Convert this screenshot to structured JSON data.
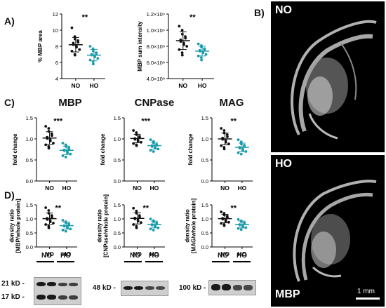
{
  "panel_letters": {
    "A": "A)",
    "B": "B)",
    "C": "C)",
    "D": "D)"
  },
  "section_titles": {
    "mbp": "MBP",
    "cnpase": "CNPase",
    "mag": "MAG"
  },
  "micrographs": {
    "top_label": "NO",
    "bottom_label": "HO",
    "stain_label": "MBP",
    "scale_bar": "1 mm"
  },
  "blots": {
    "group_labels": [
      "NO",
      "HO"
    ],
    "mbp_bands": [
      "21 kD -",
      "17 kD -"
    ],
    "cnpase_band": "48 kD -",
    "mag_band": "100 kD -"
  },
  "colors": {
    "no": "#111111",
    "ho": "#1a9aaa"
  },
  "chart_data": [
    {
      "id": "A1",
      "type": "scatter",
      "ylabel": "% MBP area",
      "yticks": [
        "4",
        "6",
        "8",
        "10",
        "12"
      ],
      "ylim": [
        4,
        12
      ],
      "categories": [
        "NO",
        "HO"
      ],
      "significance": "**",
      "series": [
        {
          "name": "NO",
          "mean": 8.2,
          "sd": 0.9,
          "values": [
            10.3,
            9.2,
            8.9,
            8.7,
            8.5,
            8.4,
            8.2,
            8.0,
            7.9,
            7.6,
            7.4,
            7.0,
            6.9
          ]
        },
        {
          "name": "HO",
          "mean": 6.9,
          "sd": 0.7,
          "values": [
            8.0,
            7.7,
            7.4,
            7.2,
            7.1,
            7.0,
            6.9,
            6.8,
            6.7,
            6.5,
            6.3,
            6.1,
            5.8
          ]
        }
      ]
    },
    {
      "id": "A2",
      "type": "scatter",
      "ylabel": "MBP sum intensity",
      "yticks": [
        "4.0×10⁸",
        "6.0×10⁸",
        "8.0×10⁸",
        "1.0×10⁹",
        "1.2×10⁹"
      ],
      "ylim": [
        400000000.0,
        1200000000.0
      ],
      "categories": [
        "NO",
        "HO"
      ],
      "significance": "**",
      "series": [
        {
          "name": "NO",
          "mean": 870000000.0,
          "sd": 110000000.0,
          "values": [
            1050000000.0,
            1000000000.0,
            950000000.0,
            920000000.0,
            900000000.0,
            880000000.0,
            860000000.0,
            840000000.0,
            820000000.0,
            800000000.0,
            760000000.0,
            720000000.0,
            690000000.0
          ]
        },
        {
          "name": "HO",
          "mean": 740000000.0,
          "sd": 60000000.0,
          "values": [
            830000000.0,
            810000000.0,
            790000000.0,
            770000000.0,
            760000000.0,
            750000000.0,
            740000000.0,
            730000000.0,
            720000000.0,
            700000000.0,
            680000000.0,
            660000000.0,
            630000000.0
          ]
        }
      ]
    },
    {
      "id": "C_MBP",
      "type": "scatter",
      "ylabel": "fold change",
      "yticks": [
        "0.0",
        "0.5",
        "1.0",
        "1.5"
      ],
      "ylim": [
        0,
        1.5
      ],
      "categories": [
        "NO",
        "HO"
      ],
      "significance": "***",
      "series": [
        {
          "name": "NO",
          "mean": 1.02,
          "sd": 0.15,
          "values": [
            1.3,
            1.25,
            1.18,
            1.12,
            1.08,
            1.04,
            1.01,
            0.98,
            0.95,
            0.9,
            0.86,
            0.82,
            0.78
          ]
        },
        {
          "name": "HO",
          "mean": 0.73,
          "sd": 0.1,
          "values": [
            0.9,
            0.86,
            0.82,
            0.79,
            0.76,
            0.74,
            0.72,
            0.7,
            0.67,
            0.64,
            0.6,
            0.57
          ]
        }
      ]
    },
    {
      "id": "C_CNPase",
      "type": "scatter",
      "ylabel": "fold change",
      "yticks": [
        "0.0",
        "0.5",
        "1.0",
        "1.5"
      ],
      "ylim": [
        0,
        1.5
      ],
      "categories": [
        "NO",
        "HO"
      ],
      "significance": "***",
      "series": [
        {
          "name": "NO",
          "mean": 1.01,
          "sd": 0.1,
          "values": [
            1.2,
            1.15,
            1.1,
            1.06,
            1.03,
            1.01,
            0.99,
            0.97,
            0.95,
            0.92,
            0.89,
            0.86,
            0.84
          ]
        },
        {
          "name": "HO",
          "mean": 0.84,
          "sd": 0.08,
          "values": [
            0.98,
            0.94,
            0.9,
            0.87,
            0.85,
            0.84,
            0.82,
            0.8,
            0.78,
            0.76,
            0.73,
            0.7
          ]
        }
      ]
    },
    {
      "id": "C_MAG",
      "type": "scatter",
      "ylabel": "fold change",
      "yticks": [
        "0.0",
        "0.5",
        "1.0",
        "1.5"
      ],
      "ylim": [
        0,
        1.5
      ],
      "categories": [
        "NO",
        "HO"
      ],
      "significance": "**",
      "series": [
        {
          "name": "NO",
          "mean": 1.0,
          "sd": 0.14,
          "values": [
            1.25,
            1.2,
            1.14,
            1.1,
            1.05,
            1.02,
            0.99,
            0.96,
            0.92,
            0.88,
            0.84,
            0.8,
            0.76
          ]
        },
        {
          "name": "HO",
          "mean": 0.8,
          "sd": 0.1,
          "values": [
            0.98,
            0.93,
            0.88,
            0.85,
            0.82,
            0.8,
            0.78,
            0.76,
            0.73,
            0.7,
            0.67,
            0.64
          ]
        }
      ]
    },
    {
      "id": "D_MBP",
      "type": "scatter",
      "ylabel_lines": [
        "density ratio",
        "[MBP/whole protein]"
      ],
      "yticks": [
        "0.0",
        "0.5",
        "1.0",
        "1.5"
      ],
      "ylim": [
        0,
        1.5
      ],
      "categories": [
        "NO",
        "HO"
      ],
      "significance": "**",
      "series": [
        {
          "name": "NO",
          "mean": 1.01,
          "sd": 0.2,
          "values": [
            1.4,
            1.3,
            1.2,
            1.12,
            1.06,
            1.02,
            0.98,
            0.94,
            0.9,
            0.85,
            0.8,
            0.74,
            0.68
          ]
        },
        {
          "name": "HO",
          "mean": 0.76,
          "sd": 0.12,
          "values": [
            0.95,
            0.9,
            0.86,
            0.82,
            0.78,
            0.76,
            0.74,
            0.71,
            0.68,
            0.64,
            0.6,
            0.56
          ]
        }
      ]
    },
    {
      "id": "D_CNPase",
      "type": "scatter",
      "ylabel_lines": [
        "density ratio",
        "[CNPase/whole protein]"
      ],
      "yticks": [
        "0.0",
        "0.5",
        "1.0",
        "1.5"
      ],
      "ylim": [
        0,
        1.5
      ],
      "categories": [
        "NO",
        "HO"
      ],
      "significance": "**",
      "series": [
        {
          "name": "NO",
          "mean": 1.02,
          "sd": 0.2,
          "values": [
            1.38,
            1.28,
            1.2,
            1.12,
            1.07,
            1.03,
            1.0,
            0.96,
            0.92,
            0.87,
            0.8,
            0.74,
            0.68
          ]
        },
        {
          "name": "HO",
          "mean": 0.8,
          "sd": 0.12,
          "values": [
            1.0,
            0.94,
            0.9,
            0.86,
            0.82,
            0.8,
            0.78,
            0.75,
            0.72,
            0.68,
            0.64,
            0.6
          ]
        }
      ]
    },
    {
      "id": "D_MAG",
      "type": "scatter",
      "ylabel_lines": [
        "density ratio",
        "[MAG/whole protein]"
      ],
      "yticks": [
        "0.0",
        "0.5",
        "1.0",
        "1.5"
      ],
      "ylim": [
        0,
        1.5
      ],
      "categories": [
        "NO",
        "HO"
      ],
      "significance": "**",
      "series": [
        {
          "name": "NO",
          "mean": 1.01,
          "sd": 0.15,
          "values": [
            1.25,
            1.2,
            1.14,
            1.1,
            1.06,
            1.02,
            0.99,
            0.96,
            0.92,
            0.88,
            0.84,
            0.8,
            0.76
          ]
        },
        {
          "name": "HO",
          "mean": 0.8,
          "sd": 0.12,
          "values": [
            0.98,
            0.93,
            0.9,
            0.86,
            0.83,
            0.8,
            0.78,
            0.75,
            0.72,
            0.69,
            0.66,
            0.62
          ]
        }
      ]
    }
  ]
}
